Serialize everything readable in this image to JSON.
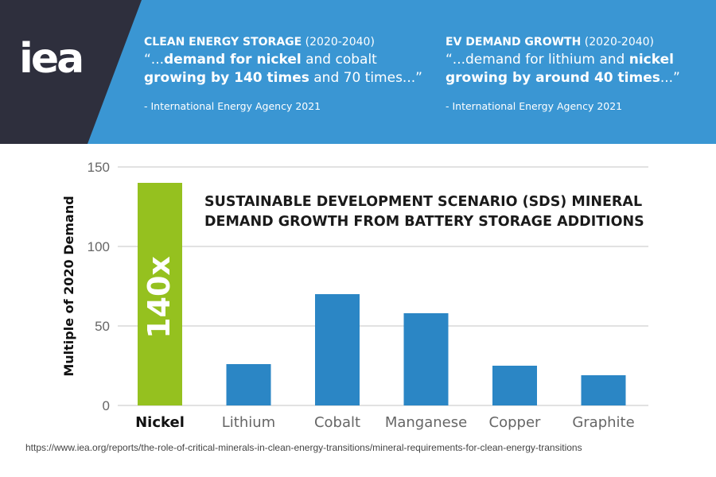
{
  "logo": {
    "text": "iea"
  },
  "quotes": [
    {
      "heading_bold": "CLEAN ENERGY STORAGE",
      "heading_rest": " (2020-2040)",
      "line1_pre": "“...",
      "line1_bold": "demand for nickel",
      "line1_post": " and cobalt",
      "line2_bold": "growing by 140 times",
      "line2_post": " and 70 times...”",
      "attribution": "- International Energy Agency 2021"
    },
    {
      "heading_bold": "EV DEMAND GROWTH",
      "heading_rest": " (2020-2040)",
      "line1_pre": "“...demand for lithium and ",
      "line1_bold": "nickel",
      "line1_post": "",
      "line2_bold": "growing by around 40 times",
      "line2_post": "...”",
      "attribution": "- International Energy Agency 2021"
    }
  ],
  "colors": {
    "banner": "#3a96d3",
    "logo_panel": "#2e2f3d",
    "bar_highlight": "#95c11f",
    "bar": "#2b86c5",
    "grid": "#d9d9d9",
    "title": "#1a1a1a"
  },
  "chart_data": {
    "type": "bar",
    "title": "SUSTAINABLE DEVELOPMENT SCENARIO (SDS) MINERAL DEMAND GROWTH FROM BATTERY STORAGE ADDITIONS",
    "title_lines": [
      "SUSTAINABLE DEVELOPMENT SCENARIO (SDS) MINERAL",
      "DEMAND GROWTH FROM BATTERY STORAGE ADDITIONS"
    ],
    "ylabel": "Multiple of 2020 Demand",
    "xlabel": "",
    "categories": [
      "Nickel",
      "Lithium",
      "Cobalt",
      "Manganese",
      "Copper",
      "Graphite"
    ],
    "values": [
      140,
      26,
      70,
      58,
      25,
      19
    ],
    "highlight_index": 0,
    "highlight_label": "140x",
    "ylim": [
      0,
      150
    ],
    "yticks": [
      0,
      50,
      100,
      150
    ],
    "grid": true,
    "legend": "none"
  },
  "source": "https://www.iea.org/reports/the-role-of-critical-minerals-in-clean-energy-transitions/mineral-requirements-for-clean-energy-transitions"
}
